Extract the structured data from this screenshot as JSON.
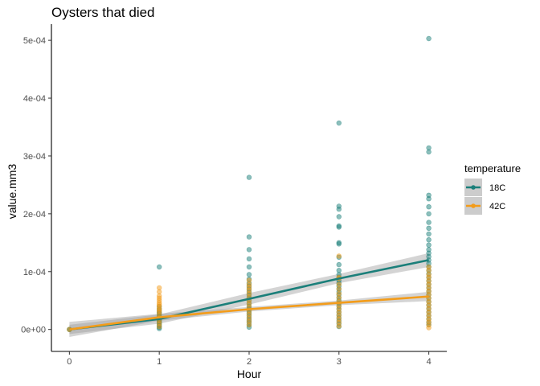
{
  "chart_data": {
    "type": "scatter",
    "title": "Oysters that died",
    "xlabel": "Hour",
    "ylabel": "value.mm3",
    "xlim": [
      -0.2,
      4.2
    ],
    "ylim": [
      -3.8e-05,
      0.000528
    ],
    "x_ticks": [
      0,
      1,
      2,
      3,
      4
    ],
    "x_tick_labels": [
      "0",
      "1",
      "2",
      "3",
      "4"
    ],
    "y_ticks": [
      0,
      0.0001,
      0.0002,
      0.0003,
      0.0004,
      0.0005
    ],
    "y_tick_labels": [
      "0e+00",
      "1e-04",
      "2e-04",
      "3e-04",
      "4e-04",
      "5e-04"
    ],
    "grid": false,
    "legend": {
      "title": "temperature",
      "position": "right"
    },
    "series": [
      {
        "name": "18C",
        "color": "#1b7f7a",
        "points": [
          [
            0,
            0.0
          ],
          [
            0,
            0.0
          ],
          [
            1,
            1.5e-06
          ],
          [
            1,
            4e-06
          ],
          [
            1,
            6e-06
          ],
          [
            1,
            8e-06
          ],
          [
            1,
            1e-05
          ],
          [
            1,
            1.2e-05
          ],
          [
            1,
            1.4e-05
          ],
          [
            1,
            1.6e-05
          ],
          [
            1,
            1.8e-05
          ],
          [
            1,
            2e-05
          ],
          [
            1,
            2.2e-05
          ],
          [
            1,
            2.5e-05
          ],
          [
            1,
            2.8e-05
          ],
          [
            1,
            3e-05
          ],
          [
            1,
            3.3e-05
          ],
          [
            1,
            3.6e-05
          ],
          [
            1,
            4e-05
          ],
          [
            1,
            0.000108
          ],
          [
            2,
            4e-06
          ],
          [
            2,
            8e-06
          ],
          [
            2,
            1.2e-05
          ],
          [
            2,
            1.6e-05
          ],
          [
            2,
            2e-05
          ],
          [
            2,
            2.4e-05
          ],
          [
            2,
            2.8e-05
          ],
          [
            2,
            3.2e-05
          ],
          [
            2,
            3.6e-05
          ],
          [
            2,
            4e-05
          ],
          [
            2,
            4.5e-05
          ],
          [
            2,
            5e-05
          ],
          [
            2,
            5.5e-05
          ],
          [
            2,
            6e-05
          ],
          [
            2,
            6.5e-05
          ],
          [
            2,
            7e-05
          ],
          [
            2,
            7.5e-05
          ],
          [
            2,
            8e-05
          ],
          [
            2,
            8.7e-05
          ],
          [
            2,
            9.5e-05
          ],
          [
            2,
            0.000108
          ],
          [
            2,
            0.000122
          ],
          [
            2,
            0.000138
          ],
          [
            2,
            0.00016
          ],
          [
            2,
            0.000263
          ],
          [
            3,
            5e-06
          ],
          [
            3,
            1e-05
          ],
          [
            3,
            1.5e-05
          ],
          [
            3,
            2e-05
          ],
          [
            3,
            2.5e-05
          ],
          [
            3,
            3e-05
          ],
          [
            3,
            3.5e-05
          ],
          [
            3,
            4e-05
          ],
          [
            3,
            4.5e-05
          ],
          [
            3,
            5e-05
          ],
          [
            3,
            5.5e-05
          ],
          [
            3,
            6e-05
          ],
          [
            3,
            6.5e-05
          ],
          [
            3,
            7e-05
          ],
          [
            3,
            7.5e-05
          ],
          [
            3,
            8e-05
          ],
          [
            3,
            8.5e-05
          ],
          [
            3,
            9e-05
          ],
          [
            3,
            9.5e-05
          ],
          [
            3,
            0.000102
          ],
          [
            3,
            0.000112
          ],
          [
            3,
            0.000125
          ],
          [
            3,
            0.000148
          ],
          [
            3,
            0.00015
          ],
          [
            3,
            0.000177
          ],
          [
            3,
            0.000179
          ],
          [
            3,
            0.000195
          ],
          [
            3,
            0.000208
          ],
          [
            3,
            0.000213
          ],
          [
            3,
            0.000357
          ],
          [
            4,
            8e-06
          ],
          [
            4,
            1.2e-05
          ],
          [
            4,
            1.8e-05
          ],
          [
            4,
            2.4e-05
          ],
          [
            4,
            3e-05
          ],
          [
            4,
            3.6e-05
          ],
          [
            4,
            4.2e-05
          ],
          [
            4,
            4.8e-05
          ],
          [
            4,
            5.4e-05
          ],
          [
            4,
            6e-05
          ],
          [
            4,
            6.6e-05
          ],
          [
            4,
            7.2e-05
          ],
          [
            4,
            7.8e-05
          ],
          [
            4,
            8.4e-05
          ],
          [
            4,
            9e-05
          ],
          [
            4,
            9.6e-05
          ],
          [
            4,
            0.000102
          ],
          [
            4,
            0.000108
          ],
          [
            4,
            0.000114
          ],
          [
            4,
            0.00012
          ],
          [
            4,
            0.000126
          ],
          [
            4,
            0.000132
          ],
          [
            4,
            0.000138
          ],
          [
            4,
            0.000146
          ],
          [
            4,
            0.000155
          ],
          [
            4,
            0.000165
          ],
          [
            4,
            0.000175
          ],
          [
            4,
            0.000185
          ],
          [
            4,
            0.0002
          ],
          [
            4,
            0.000212
          ],
          [
            4,
            0.000226
          ],
          [
            4,
            0.000232
          ],
          [
            4,
            0.000307
          ],
          [
            4,
            0.000314
          ],
          [
            4,
            0.000503
          ]
        ],
        "fit_line": [
          [
            0,
            0.0
          ],
          [
            1,
            1.8e-05
          ],
          [
            2,
            5.3e-05
          ],
          [
            3,
            8.8e-05
          ],
          [
            4,
            0.00012
          ]
        ],
        "ci_upper": [
          [
            0,
            8e-06
          ],
          [
            1,
            2.6e-05
          ],
          [
            2,
            6.3e-05
          ],
          [
            3,
            9.6e-05
          ],
          [
            4,
            0.000132
          ]
        ],
        "ci_lower": [
          [
            0,
            -8e-06
          ],
          [
            1,
            1e-05
          ],
          [
            2,
            4.3e-05
          ],
          [
            3,
            8e-05
          ],
          [
            4,
            0.000108
          ]
        ]
      },
      {
        "name": "42C",
        "color": "#f39c1a",
        "points": [
          [
            0,
            0.0
          ],
          [
            1,
            5e-06
          ],
          [
            1,
            1e-05
          ],
          [
            1,
            1.5e-05
          ],
          [
            1,
            2e-05
          ],
          [
            1,
            2.5e-05
          ],
          [
            1,
            3e-05
          ],
          [
            1,
            3.3e-05
          ],
          [
            1,
            3.6e-05
          ],
          [
            1,
            4e-05
          ],
          [
            1,
            4.3e-05
          ],
          [
            1,
            4.6e-05
          ],
          [
            1,
            5e-05
          ],
          [
            1,
            5.4e-05
          ],
          [
            1,
            5.8e-05
          ],
          [
            1,
            6.5e-05
          ],
          [
            1,
            7.2e-05
          ],
          [
            2,
            8e-06
          ],
          [
            2,
            1.4e-05
          ],
          [
            2,
            2e-05
          ],
          [
            2,
            2.6e-05
          ],
          [
            2,
            3.2e-05
          ],
          [
            2,
            3.8e-05
          ],
          [
            2,
            4.4e-05
          ],
          [
            2,
            5e-05
          ],
          [
            2,
            5.6e-05
          ],
          [
            2,
            6.2e-05
          ],
          [
            2,
            6.8e-05
          ],
          [
            2,
            7.3e-05
          ],
          [
            2,
            7.8e-05
          ],
          [
            2,
            8.5e-05
          ],
          [
            3,
            6e-06
          ],
          [
            3,
            1.2e-05
          ],
          [
            3,
            1.8e-05
          ],
          [
            3,
            2.4e-05
          ],
          [
            3,
            3e-05
          ],
          [
            3,
            3.6e-05
          ],
          [
            3,
            4.2e-05
          ],
          [
            3,
            4.8e-05
          ],
          [
            3,
            5.5e-05
          ],
          [
            3,
            6.2e-05
          ],
          [
            3,
            7e-05
          ],
          [
            3,
            7.8e-05
          ],
          [
            3,
            8.8e-05
          ],
          [
            3,
            9e-05
          ],
          [
            3,
            0.000127
          ],
          [
            4,
            3e-06
          ],
          [
            4,
            8e-06
          ],
          [
            4,
            1.3e-05
          ],
          [
            4,
            1.8e-05
          ],
          [
            4,
            2.4e-05
          ],
          [
            4,
            3e-05
          ],
          [
            4,
            3.6e-05
          ],
          [
            4,
            4.2e-05
          ],
          [
            4,
            4.8e-05
          ],
          [
            4,
            5.4e-05
          ],
          [
            4,
            6e-05
          ],
          [
            4,
            6.6e-05
          ],
          [
            4,
            7.2e-05
          ],
          [
            4,
            7.8e-05
          ],
          [
            4,
            8.4e-05
          ],
          [
            4,
            9e-05
          ],
          [
            4,
            9.5e-05
          ],
          [
            4,
            0.000102
          ],
          [
            4,
            0.000108
          ]
        ],
        "fit_line": [
          [
            0,
            0.0
          ],
          [
            1,
            2.1e-05
          ],
          [
            2,
            3.5e-05
          ],
          [
            3,
            4.6e-05
          ],
          [
            4,
            5.7e-05
          ]
        ],
        "ci_upper": [
          [
            0,
            1.3e-05
          ],
          [
            1,
            2.7e-05
          ],
          [
            2,
            3.9e-05
          ],
          [
            3,
            5e-05
          ],
          [
            4,
            6.5e-05
          ]
        ],
        "ci_lower": [
          [
            0,
            -1.3e-05
          ],
          [
            1,
            1.5e-05
          ],
          [
            2,
            3.1e-05
          ],
          [
            3,
            4.2e-05
          ],
          [
            4,
            4.9e-05
          ]
        ]
      }
    ]
  }
}
